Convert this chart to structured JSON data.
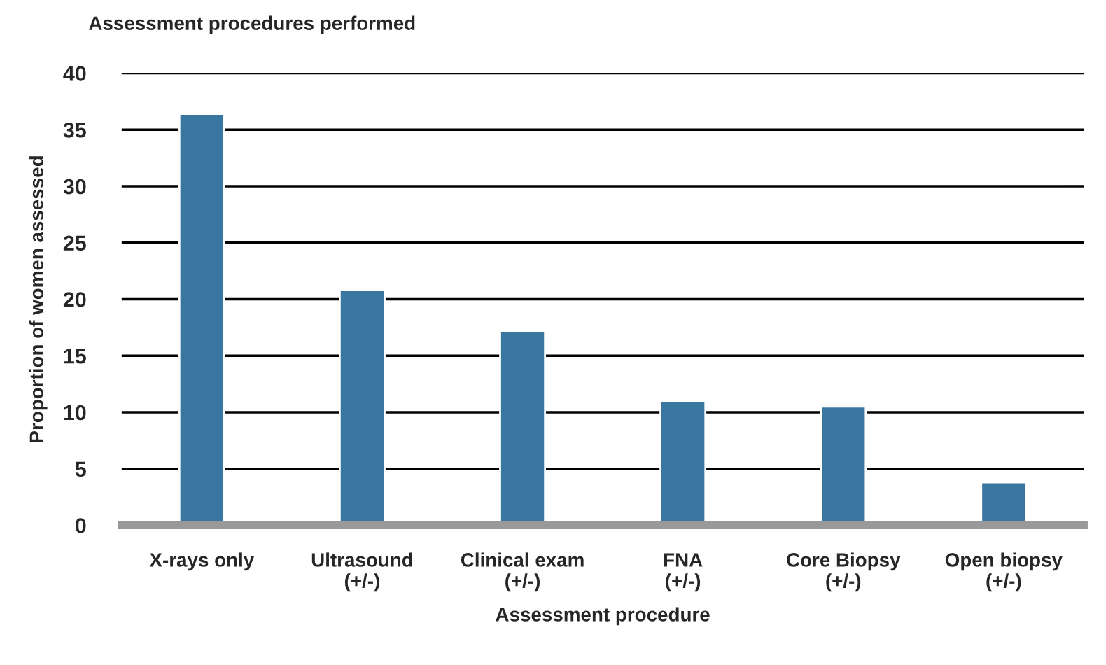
{
  "chart_data": {
    "type": "bar",
    "title": "Assessment procedures performed",
    "xlabel": "Assessment procedure",
    "ylabel": "Proportion of women assessed",
    "categories": [
      "X-rays only",
      "Ultrasound\n(+/-)",
      "Clinical exam\n(+/-)",
      "FNA\n(+/-)",
      "Core Biopsy\n(+/-)",
      "Open biopsy\n(+/-)"
    ],
    "values": [
      36.4,
      20.8,
      17.2,
      11.0,
      10.5,
      3.8
    ],
    "color": "#3a77a0",
    "ylim": [
      0,
      40
    ],
    "yticks": [
      0,
      5,
      10,
      15,
      20,
      25,
      30,
      35,
      40
    ],
    "grid": "y"
  }
}
